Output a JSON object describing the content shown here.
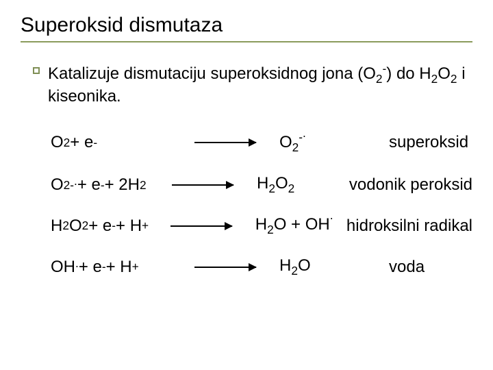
{
  "colors": {
    "title_underline": "#8a9b5b",
    "bullet_border": "#7f8f55",
    "arrow": "#000000",
    "text": "#000000",
    "background": "#ffffff"
  },
  "title": "Superoksid dismutaza",
  "bullet": {
    "pre": "Katalizuje dismutaciju superoksidnog jona (O",
    "sub1": "2",
    "sup1": "-",
    "mid": ") do H",
    "sub2": "2",
    "o": "O",
    "sub3": "2",
    "post": "  i kiseonika."
  },
  "eq1": {
    "lhs_o": "O",
    "lhs_sub": "2",
    "lhs_rest": " + e",
    "lhs_sup": "-",
    "rhs_o": "O",
    "rhs_sub": "2",
    "rhs_sup": "-",
    "rhs_dot": ".",
    "label": "superoksid"
  },
  "eq2": {
    "lhs_o": "O",
    "lhs_sub": "2",
    "lhs_sup": "-",
    "lhs_dot": ".",
    "lhs_p1": " + e",
    "lhs_p1_sup": "-",
    "lhs_p2": " + 2H",
    "lhs_p2_sub": "2",
    "rhs_h": "H",
    "rhs_sub1": "2",
    "rhs_o": "O",
    "rhs_sub2": "2",
    "label": "vodonik peroksid"
  },
  "eq3": {
    "lhs_h": "H",
    "lhs_sub1": "2",
    "lhs_o": "O",
    "lhs_sub2": "2",
    "lhs_p1": " + e",
    "lhs_p1_sup": "-",
    "lhs_p2": " + H",
    "lhs_p2_sup": "+",
    "rhs_h": "H",
    "rhs_sub": "2",
    "rhs_o": "O + OH",
    "rhs_dot": ".",
    "label": "hidroksilni radikal"
  },
  "eq4": {
    "lhs_oh": "OH",
    "lhs_dot": ".",
    "lhs_p1": " + e",
    "lhs_p1_sup": "-",
    "lhs_p2": " + H",
    "lhs_p2_sup": "+",
    "rhs_h": "H",
    "rhs_sub": "2",
    "rhs_o": "O",
    "label": "voda"
  }
}
